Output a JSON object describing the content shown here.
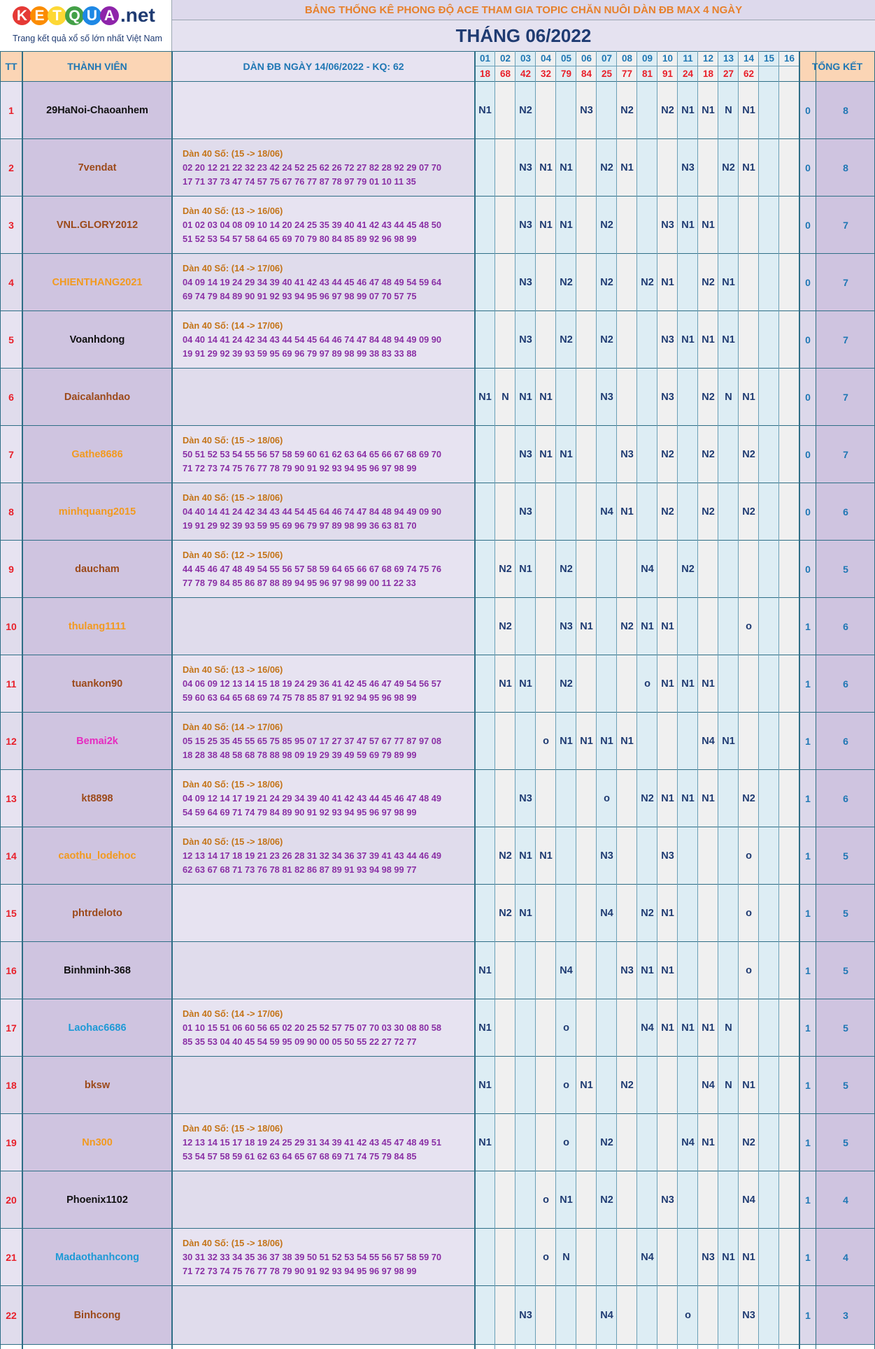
{
  "header": {
    "logo_letters": [
      "K",
      "E",
      "T",
      "Q",
      "U",
      "A"
    ],
    "logo_colors": [
      "#e53935",
      "#fb8c00",
      "#fdd835",
      "#43a047",
      "#1e88e5",
      "#8e24aa"
    ],
    "logo_domain": ".net",
    "logo_slogan": "Trang kết quả xổ số lớn nhất Việt Nam",
    "banner": "BẢNG THỐNG KÊ PHONG ĐỘ ACE THAM GIA TOPIC CHĂN NUÔI DÀN ĐB MAX 4 NGÀY",
    "month": "THÁNG 06/2022"
  },
  "columns": {
    "tt": "TT",
    "member": "THÀNH VIÊN",
    "dan": "DÀN ĐB NGÀY 14/06/2022 - KQ: 62",
    "summary": "TỔNG KẾT",
    "days": [
      {
        "day": "01",
        "result": "18"
      },
      {
        "day": "02",
        "result": "68"
      },
      {
        "day": "03",
        "result": "42"
      },
      {
        "day": "04",
        "result": "32"
      },
      {
        "day": "05",
        "result": "79"
      },
      {
        "day": "06",
        "result": "84"
      },
      {
        "day": "07",
        "result": "25"
      },
      {
        "day": "08",
        "result": "77"
      },
      {
        "day": "09",
        "result": "81"
      },
      {
        "day": "10",
        "result": "91"
      },
      {
        "day": "11",
        "result": "24"
      },
      {
        "day": "12",
        "result": "18"
      },
      {
        "day": "13",
        "result": "27"
      },
      {
        "day": "14",
        "result": "62"
      },
      {
        "day": "15",
        "result": ""
      },
      {
        "day": "16",
        "result": ""
      }
    ]
  },
  "colors": {
    "header_peach": "#fbd5b5",
    "header_text": "#1f77b4",
    "row_odd": "#e7e3f1",
    "row_even": "#e0dcec",
    "name_cell": "#cfc4e0",
    "day_col_a": "#ddedf4",
    "day_col_b": "#f0f0f0",
    "summary_a": "#dcd8ea",
    "summary_b": "#cfc4e0",
    "number_red": "#e8202a",
    "title_orange": "#e7812c",
    "navy": "#1f3b72"
  },
  "rows": [
    {
      "tt": "1",
      "name": "29HaNoi-Chaoanhem",
      "name_color": "#111111",
      "dan_title": "",
      "dan_line1": "",
      "dan_line2": "",
      "marks": [
        "N1",
        "",
        "N2",
        "",
        "",
        "N3",
        "",
        "N2",
        "",
        "N2",
        "N1",
        "N1",
        "N",
        "N1",
        "",
        ""
      ],
      "s1": "0",
      "s2": "8"
    },
    {
      "tt": "2",
      "name": "7vendat",
      "name_color": "#9c4a1a",
      "dan_title": "Dàn 40 Số: (15 -> 18/06)",
      "dan_line1": "02 20 12 21 22 32 23 42 24 52 25 62 26 72 27 82 28 92 29 07 70",
      "dan_line2": "17 71 37 73 47 74 57 75 67 76 77 87 78 97 79 01 10 11 35",
      "marks": [
        "",
        "",
        "N3",
        "N1",
        "N1",
        "",
        "N2",
        "N1",
        "",
        "",
        "N3",
        "",
        "N2",
        "N1",
        "",
        ""
      ],
      "s1": "0",
      "s2": "8"
    },
    {
      "tt": "3",
      "name": "VNL.GLORY2012",
      "name_color": "#9c4a1a",
      "dan_title": "Dàn 40 Số: (13 -> 16/06)",
      "dan_line1": "01 02 03 04 08 09 10 14 20 24 25 35 39 40 41 42 43 44 45 48 50",
      "dan_line2": "51 52 53 54 57 58 64 65 69 70 79 80 84 85 89 92 96 98 99",
      "marks": [
        "",
        "",
        "N3",
        "N1",
        "N1",
        "",
        "N2",
        "",
        "",
        "N3",
        "N1",
        "N1",
        "",
        "",
        "",
        ""
      ],
      "s1": "0",
      "s2": "7"
    },
    {
      "tt": "4",
      "name": "CHIENTHANG2021",
      "name_color": "#f29a1f",
      "dan_title": "Dàn 40 Số: (14 -> 17/06)",
      "dan_line1": "04 09 14 19 24 29 34 39 40 41 42 43 44 45 46 47 48 49 54 59 64",
      "dan_line2": "69 74 79 84 89 90 91 92 93 94 95 96 97 98 99 07 70 57 75",
      "marks": [
        "",
        "",
        "N3",
        "",
        "N2",
        "",
        "N2",
        "",
        "N2",
        "N1",
        "",
        "N2",
        "N1",
        "",
        "",
        ""
      ],
      "s1": "0",
      "s2": "7"
    },
    {
      "tt": "5",
      "name": "Voanhdong",
      "name_color": "#111111",
      "dan_title": "Dàn 40 Số: (14 -> 17/06)",
      "dan_line1": "04 40 14 41 24 42 34 43 44 54 45 64 46 74 47 84 48 94 49 09 90",
      "dan_line2": "19 91 29 92 39 93 59 95 69 96 79 97 89 98 99 38 83 33 88",
      "marks": [
        "",
        "",
        "N3",
        "",
        "N2",
        "",
        "N2",
        "",
        "",
        "N3",
        "N1",
        "N1",
        "N1",
        "",
        "",
        ""
      ],
      "s1": "0",
      "s2": "7"
    },
    {
      "tt": "6",
      "name": "Daicalanhdao",
      "name_color": "#9c4a1a",
      "dan_title": "",
      "dan_line1": "",
      "dan_line2": "",
      "marks": [
        "N1",
        "N",
        "N1",
        "N1",
        "",
        "",
        "N3",
        "",
        "",
        "N3",
        "",
        "N2",
        "N",
        "N1",
        "",
        ""
      ],
      "s1": "0",
      "s2": "7"
    },
    {
      "tt": "7",
      "name": "Gathe8686",
      "name_color": "#f29a1f",
      "dan_title": "Dàn 40 Số: (15 -> 18/06)",
      "dan_line1": "50 51 52 53 54 55 56 57 58 59 60 61 62 63 64 65 66 67 68 69 70",
      "dan_line2": "71 72 73 74 75 76 77 78 79 90 91 92 93 94 95 96 97 98 99",
      "marks": [
        "",
        "",
        "N3",
        "N1",
        "N1",
        "",
        "",
        "N3",
        "",
        "N2",
        "",
        "N2",
        "",
        "N2",
        "",
        ""
      ],
      "s1": "0",
      "s2": "7"
    },
    {
      "tt": "8",
      "name": "minhquang2015",
      "name_color": "#f29a1f",
      "dan_title": "Dàn 40 Số: (15 -> 18/06)",
      "dan_line1": "04 40 14 41 24 42 34 43 44 54 45 64 46 74 47 84 48 94 49 09 90",
      "dan_line2": "19 91 29 92 39 93 59 95 69 96 79 97 89 98 99 36 63 81 70",
      "marks": [
        "",
        "",
        "N3",
        "",
        "",
        "",
        "N4",
        "N1",
        "",
        "N2",
        "",
        "N2",
        "",
        "N2",
        "",
        ""
      ],
      "s1": "0",
      "s2": "6"
    },
    {
      "tt": "9",
      "name": "daucham",
      "name_color": "#9c4a1a",
      "dan_title": "Dàn 40 Số: (12 -> 15/06)",
      "dan_line1": "44 45 46 47 48 49 54 55 56 57 58 59 64 65 66 67 68 69 74 75 76",
      "dan_line2": "77 78 79 84 85 86 87 88 89 94 95 96 97 98 99 00 11 22 33",
      "marks": [
        "",
        "N2",
        "N1",
        "",
        "N2",
        "",
        "",
        "",
        "N4",
        "",
        "N2",
        "",
        "",
        "",
        "",
        ""
      ],
      "s1": "0",
      "s2": "5"
    },
    {
      "tt": "10",
      "name": "thulang1111",
      "name_color": "#f29a1f",
      "dan_title": "",
      "dan_line1": "",
      "dan_line2": "",
      "marks": [
        "",
        "N2",
        "",
        "",
        "N3",
        "N1",
        "",
        "N2",
        "N1",
        "N1",
        "",
        "",
        "",
        "o",
        "",
        ""
      ],
      "s1": "1",
      "s2": "6"
    },
    {
      "tt": "11",
      "name": "tuankon90",
      "name_color": "#9c4a1a",
      "dan_title": "Dàn 40 Số: (13 -> 16/06)",
      "dan_line1": "04 06 09 12 13 14 15 18 19 24 29 36 41 42 45 46 47 49 54 56 57",
      "dan_line2": "59 60 63 64 65 68 69 74 75 78 85 87 91 92 94 95 96 98 99",
      "marks": [
        "",
        "N1",
        "N1",
        "",
        "N2",
        "",
        "",
        "",
        "o",
        "N1",
        "N1",
        "N1",
        "",
        "",
        "",
        ""
      ],
      "s1": "1",
      "s2": "6"
    },
    {
      "tt": "12",
      "name": "Bemai2k",
      "name_color": "#e62bc0",
      "dan_title": "Dàn 40 Số: (14 -> 17/06)",
      "dan_line1": "05 15 25 35 45 55 65 75 85 95 07 17 27 37 47 57 67 77 87 97 08",
      "dan_line2": "18 28 38 48 58 68 78 88 98 09 19 29 39 49 59 69 79 89 99",
      "marks": [
        "",
        "",
        "",
        "o",
        "N1",
        "N1",
        "N1",
        "N1",
        "",
        "",
        "",
        "N4",
        "N1",
        "",
        "",
        ""
      ],
      "s1": "1",
      "s2": "6"
    },
    {
      "tt": "13",
      "name": "kt8898",
      "name_color": "#9c4a1a",
      "dan_title": "Dàn 40 Số: (15 -> 18/06)",
      "dan_line1": "04 09 12 14 17 19 21 24 29 34 39 40 41 42 43 44 45 46 47 48 49",
      "dan_line2": "54 59 64 69 71 74 79 84 89 90 91 92 93 94 95 96 97 98 99",
      "marks": [
        "",
        "",
        "N3",
        "",
        "",
        "",
        "o",
        "",
        "N2",
        "N1",
        "N1",
        "N1",
        "",
        "N2",
        "",
        ""
      ],
      "s1": "1",
      "s2": "6"
    },
    {
      "tt": "14",
      "name": "caothu_lodehoc",
      "name_color": "#f29a1f",
      "dan_title": "Dàn 40 Số: (15 -> 18/06)",
      "dan_line1": "12 13 14 17 18 19 21 23 26 28 31 32 34 36 37 39 41 43 44 46 49",
      "dan_line2": "62 63 67 68 71 73 76 78 81 82 86 87 89 91 93 94 98 99 77",
      "marks": [
        "",
        "N2",
        "N1",
        "N1",
        "",
        "",
        "N3",
        "",
        "",
        "N3",
        "",
        "",
        "",
        "o",
        "",
        ""
      ],
      "s1": "1",
      "s2": "5"
    },
    {
      "tt": "15",
      "name": "phtrdeloto",
      "name_color": "#9c4a1a",
      "dan_title": "",
      "dan_line1": "",
      "dan_line2": "",
      "marks": [
        "",
        "N2",
        "N1",
        "",
        "",
        "",
        "N4",
        "",
        "N2",
        "N1",
        "",
        "",
        "",
        "o",
        "",
        ""
      ],
      "s1": "1",
      "s2": "5"
    },
    {
      "tt": "16",
      "name": "Binhminh-368",
      "name_color": "#111111",
      "dan_title": "",
      "dan_line1": "",
      "dan_line2": "",
      "marks": [
        "N1",
        "",
        "",
        "",
        "N4",
        "",
        "",
        "N3",
        "N1",
        "N1",
        "",
        "",
        "",
        "o",
        "",
        ""
      ],
      "s1": "1",
      "s2": "5"
    },
    {
      "tt": "17",
      "name": "Laohac6686",
      "name_color": "#1e9ad6",
      "dan_title": "Dàn 40 Số: (14 -> 17/06)",
      "dan_line1": "01 10 15 51 06 60 56 65 02 20 25 52 57 75 07 70 03 30 08 80 58",
      "dan_line2": "85 35 53 04 40 45 54 59 95 09 90 00 05 50 55 22 27 72 77",
      "marks": [
        "N1",
        "",
        "",
        "",
        "o",
        "",
        "",
        "",
        "N4",
        "N1",
        "N1",
        "N1",
        "N",
        "",
        "",
        ""
      ],
      "s1": "1",
      "s2": "5"
    },
    {
      "tt": "18",
      "name": "bksw",
      "name_color": "#9c4a1a",
      "dan_title": "",
      "dan_line1": "",
      "dan_line2": "",
      "marks": [
        "N1",
        "",
        "",
        "",
        "o",
        "N1",
        "",
        "N2",
        "",
        "",
        "",
        "N4",
        "N",
        "N1",
        "",
        ""
      ],
      "s1": "1",
      "s2": "5"
    },
    {
      "tt": "19",
      "name": "Nn300",
      "name_color": "#f29a1f",
      "dan_title": "Dàn 40 Số: (15 -> 18/06)",
      "dan_line1": "12 13 14 15 17 18 19 24 25 29 31 34 39 41 42 43 45 47 48 49 51",
      "dan_line2": "53 54 57 58 59 61 62 63 64 65 67 68 69 71 74 75 79 84 85",
      "marks": [
        "N1",
        "",
        "",
        "",
        "o",
        "",
        "N2",
        "",
        "",
        "",
        "N4",
        "N1",
        "",
        "N2",
        "",
        ""
      ],
      "s1": "1",
      "s2": "5"
    },
    {
      "tt": "20",
      "name": "Phoenix1102",
      "name_color": "#111111",
      "dan_title": "",
      "dan_line1": "",
      "dan_line2": "",
      "marks": [
        "",
        "",
        "",
        "o",
        "N1",
        "",
        "N2",
        "",
        "",
        "N3",
        "",
        "",
        "",
        "N4",
        "",
        ""
      ],
      "s1": "1",
      "s2": "4"
    },
    {
      "tt": "21",
      "name": "Madaothanhcong",
      "name_color": "#1e9ad6",
      "dan_title": "Dàn 40 Số: (15 -> 18/06)",
      "dan_line1": "30 31 32 33 34 35 36 37 38 39 50 51 52 53 54 55 56 57 58 59 70",
      "dan_line2": "71 72 73 74 75 76 77 78 79 90 91 92 93 94 95 96 97 98 99",
      "marks": [
        "",
        "",
        "",
        "o",
        "N",
        "",
        "",
        "",
        "N4",
        "",
        "",
        "N3",
        "N1",
        "N1",
        "",
        ""
      ],
      "s1": "1",
      "s2": "4"
    },
    {
      "tt": "22",
      "name": "Binhcong",
      "name_color": "#9c4a1a",
      "dan_title": "",
      "dan_line1": "",
      "dan_line2": "",
      "marks": [
        "",
        "",
        "N3",
        "",
        "",
        "",
        "N4",
        "",
        "",
        "",
        "o",
        "",
        "",
        "N3",
        "",
        ""
      ],
      "s1": "1",
      "s2": "3"
    }
  ]
}
